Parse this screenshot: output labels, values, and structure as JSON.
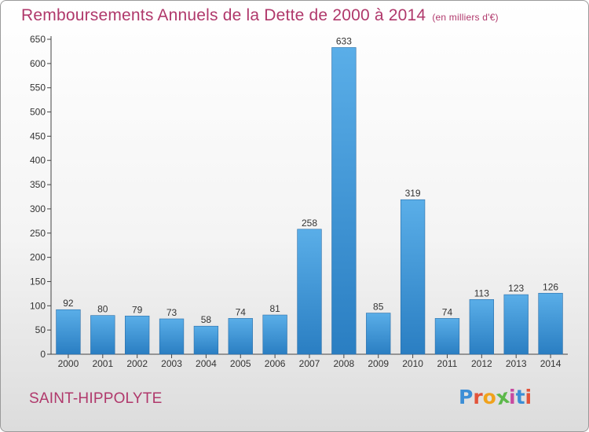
{
  "header": {
    "title": "Remboursements Annuels de la Dette de 2000 à 2014",
    "unit": "(en milliers d'€)"
  },
  "footer": {
    "commune": "SAINT-HIPPOLYTE",
    "brand": [
      "P",
      "r",
      "o",
      "x",
      "i",
      "t",
      "i"
    ],
    "brand_colors": [
      "#3c8ed6",
      "#e2533a",
      "#f0a21c",
      "#5cb84a",
      "#c74aa0",
      "#3c8ed6",
      "#e2533a"
    ]
  },
  "chart_data": {
    "type": "bar",
    "title": "Remboursements Annuels de la Dette de 2000 à 2014",
    "xlabel": "",
    "ylabel": "",
    "categories": [
      "2000",
      "2001",
      "2002",
      "2003",
      "2004",
      "2005",
      "2006",
      "2007",
      "2008",
      "2009",
      "2010",
      "2011",
      "2012",
      "2013",
      "2014"
    ],
    "values": [
      92,
      80,
      79,
      73,
      58,
      74,
      81,
      258,
      633,
      85,
      319,
      74,
      113,
      123,
      126
    ],
    "ylim": [
      0,
      650
    ],
    "yticks": [
      0,
      50,
      100,
      150,
      200,
      250,
      300,
      350,
      400,
      450,
      500,
      550,
      600,
      650
    ],
    "grid": false,
    "legend": "none",
    "bar_color_light": "#5aaee8",
    "bar_color_dark": "#2a7ec2"
  }
}
